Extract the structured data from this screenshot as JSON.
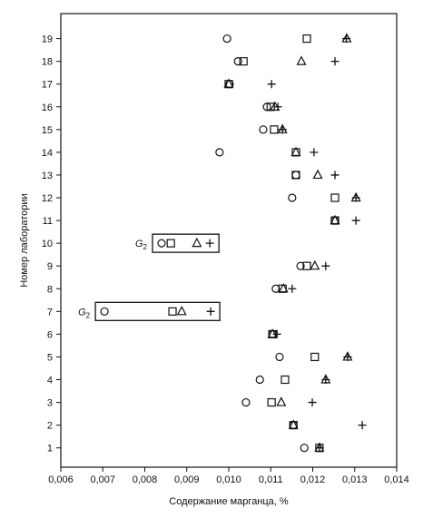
{
  "chart_data": {
    "type": "scatter",
    "x_label": "Содержание марганца, %",
    "y_label": "Номер лаборатории",
    "xlim": [
      0.006,
      0.014
    ],
    "xticks": [
      {
        "value": 0.006,
        "label": "0,006"
      },
      {
        "value": 0.007,
        "label": "0,007"
      },
      {
        "value": 0.008,
        "label": "0,008"
      },
      {
        "value": 0.009,
        "label": "0,009"
      },
      {
        "value": 0.01,
        "label": "0,010"
      },
      {
        "value": 0.011,
        "label": "0,011"
      },
      {
        "value": 0.012,
        "label": "0,012"
      },
      {
        "value": 0.013,
        "label": "0,013"
      },
      {
        "value": 0.014,
        "label": "0,014"
      }
    ],
    "ylim": [
      0.15,
      20.1
    ],
    "yticks": [
      1,
      2,
      3,
      4,
      5,
      6,
      7,
      8,
      9,
      10,
      11,
      12,
      13,
      14,
      15,
      16,
      17,
      18,
      19
    ],
    "y": [
      1,
      2,
      3,
      4,
      5,
      6,
      7,
      8,
      9,
      10,
      11,
      12,
      13,
      14,
      15,
      16,
      17,
      18,
      19
    ],
    "series": [
      {
        "marker": "circle",
        "color": "#111111",
        "values": [
          0.0118,
          0.01154,
          0.01041,
          0.01074,
          0.01121,
          0.01104,
          0.00704,
          0.01112,
          0.01171,
          0.0084,
          0.01253,
          0.01151,
          0.0116,
          0.00978,
          0.01082,
          0.01091,
          0.01002,
          0.01022,
          0.00996
        ]
      },
      {
        "marker": "square",
        "color": "#111111",
        "values": [
          0.01216,
          0.01154,
          0.01102,
          0.01134,
          0.01205,
          0.01104,
          0.00866,
          0.01128,
          0.01186,
          0.00862,
          0.01253,
          0.01253,
          0.0116,
          0.0116,
          0.01108,
          0.011,
          0.01,
          0.01035,
          0.01186
        ]
      },
      {
        "marker": "triangle",
        "color": "#111111",
        "values": [
          0.01216,
          0.01154,
          0.01125,
          0.01231,
          0.01283,
          0.01104,
          0.00888,
          0.0113,
          0.01205,
          0.00924,
          0.01253,
          0.01303,
          0.01212,
          0.0116,
          0.01128,
          0.0111,
          0.01,
          0.01173,
          0.01281
        ]
      },
      {
        "marker": "plus",
        "color": "#111111",
        "values": [
          0.01216,
          0.01318,
          0.01199,
          0.01231,
          0.01283,
          0.01115,
          0.00957,
          0.01151,
          0.01231,
          0.00955,
          0.01303,
          0.01303,
          0.01253,
          0.01203,
          0.01128,
          0.01117,
          0.01102,
          0.01253,
          0.0128
        ]
      }
    ],
    "annotations": [
      {
        "text": "G",
        "sub": "2",
        "y": 10
      },
      {
        "text": "G",
        "sub": "2",
        "y": 7
      }
    ]
  }
}
